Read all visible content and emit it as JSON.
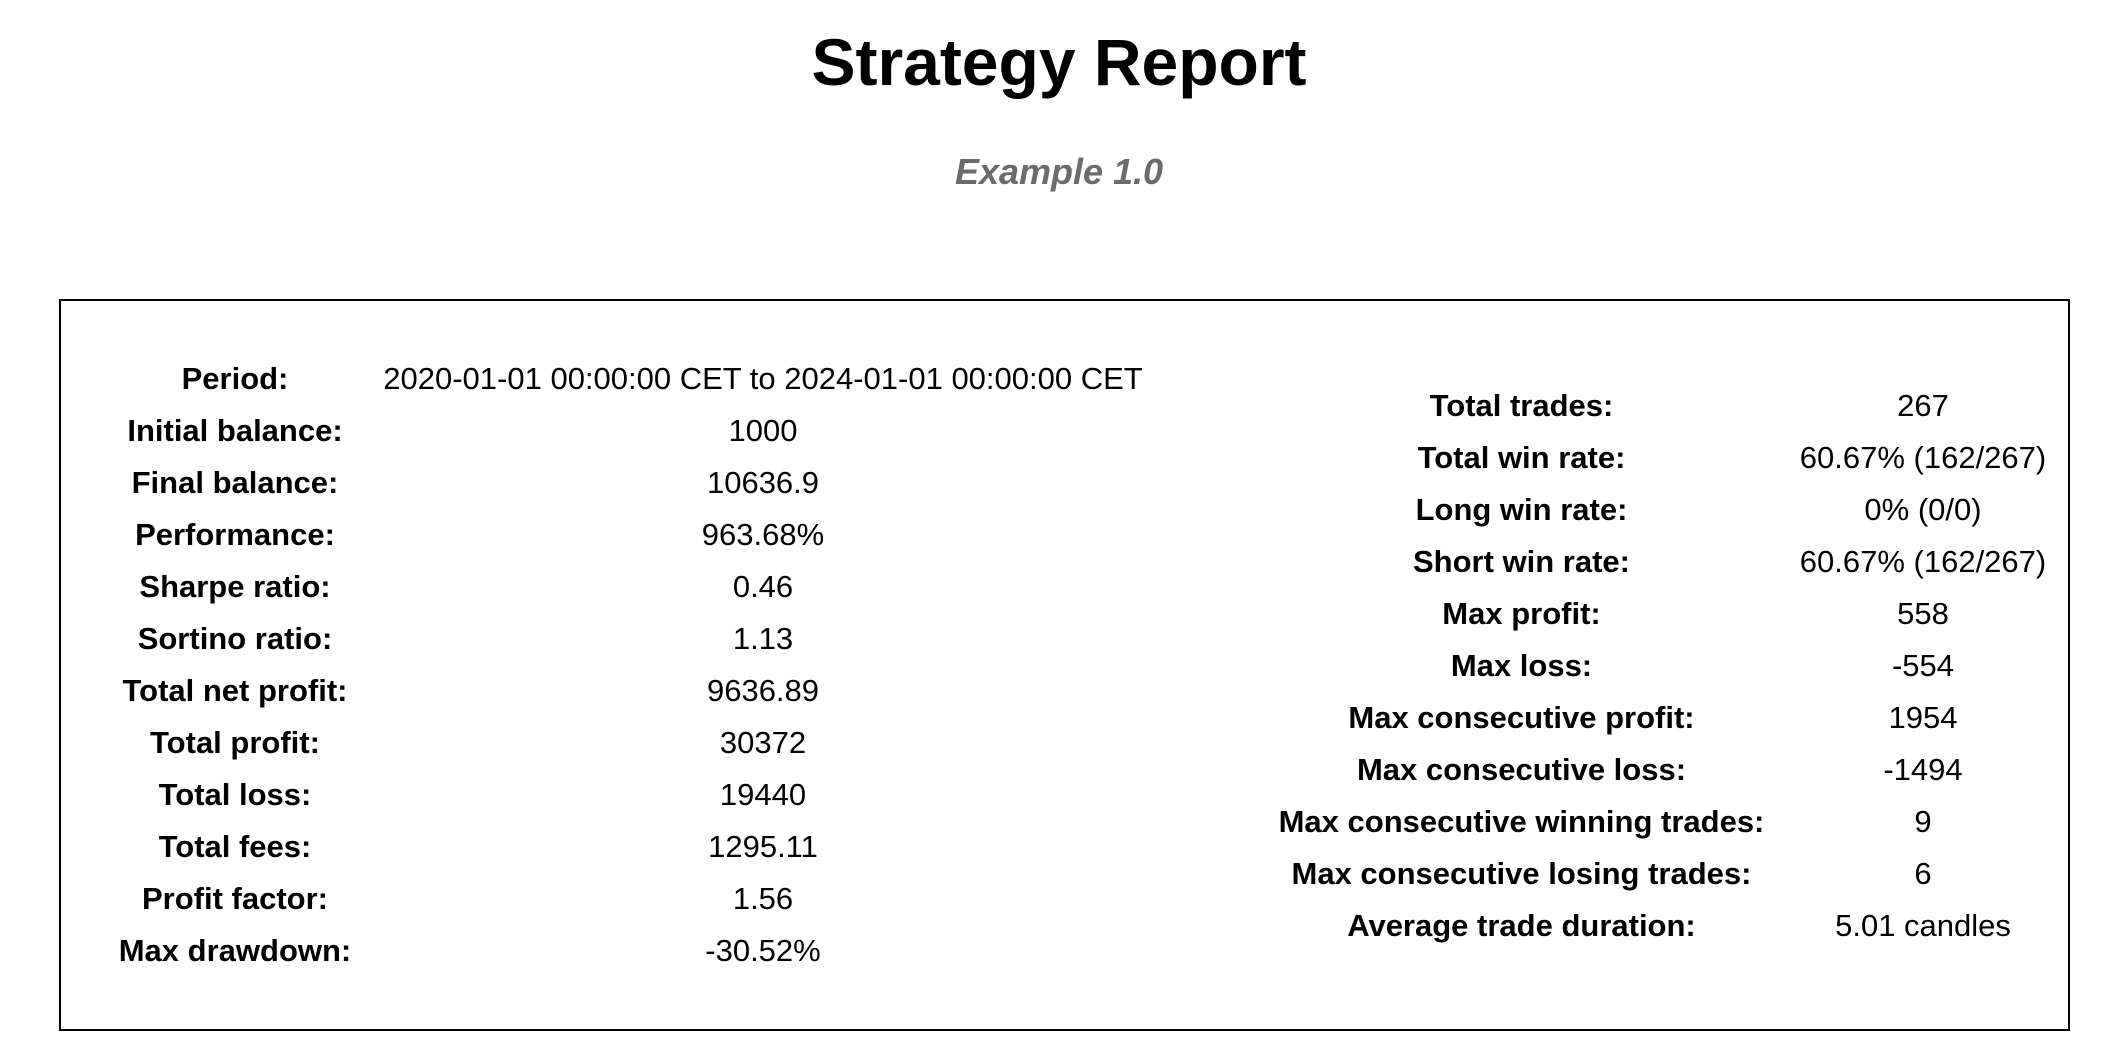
{
  "header": {
    "title": "Strategy Report",
    "subtitle": "Example 1.0"
  },
  "left_stats": [
    {
      "label": "Period:",
      "value": "2020-01-01 00:00:00 CET to 2024-01-01 00:00:00 CET"
    },
    {
      "label": "Initial balance:",
      "value": "1000"
    },
    {
      "label": "Final balance:",
      "value": "10636.9"
    },
    {
      "label": "Performance:",
      "value": "963.68%"
    },
    {
      "label": "Sharpe ratio:",
      "value": "0.46"
    },
    {
      "label": "Sortino ratio:",
      "value": "1.13"
    },
    {
      "label": "Total net profit:",
      "value": "9636.89"
    },
    {
      "label": "Total profit:",
      "value": "30372"
    },
    {
      "label": "Total loss:",
      "value": "19440"
    },
    {
      "label": "Total fees:",
      "value": "1295.11"
    },
    {
      "label": "Profit factor:",
      "value": "1.56"
    },
    {
      "label": "Max drawdown:",
      "value": "-30.52%"
    }
  ],
  "right_stats": [
    {
      "label": "Total trades:",
      "value": "267"
    },
    {
      "label": "Total win rate:",
      "value": "60.67% (162/267)"
    },
    {
      "label": "Long win rate:",
      "value": "0% (0/0)"
    },
    {
      "label": "Short win rate:",
      "value": "60.67% (162/267)"
    },
    {
      "label": "Max profit:",
      "value": "558"
    },
    {
      "label": "Max loss:",
      "value": "-554"
    },
    {
      "label": "Max consecutive profit:",
      "value": "1954"
    },
    {
      "label": "Max consecutive loss:",
      "value": "-1494"
    },
    {
      "label": "Max consecutive winning trades:",
      "value": "9"
    },
    {
      "label": "Max consecutive losing trades:",
      "value": "6"
    },
    {
      "label": "Average trade duration:",
      "value": "5.01 candles"
    }
  ]
}
